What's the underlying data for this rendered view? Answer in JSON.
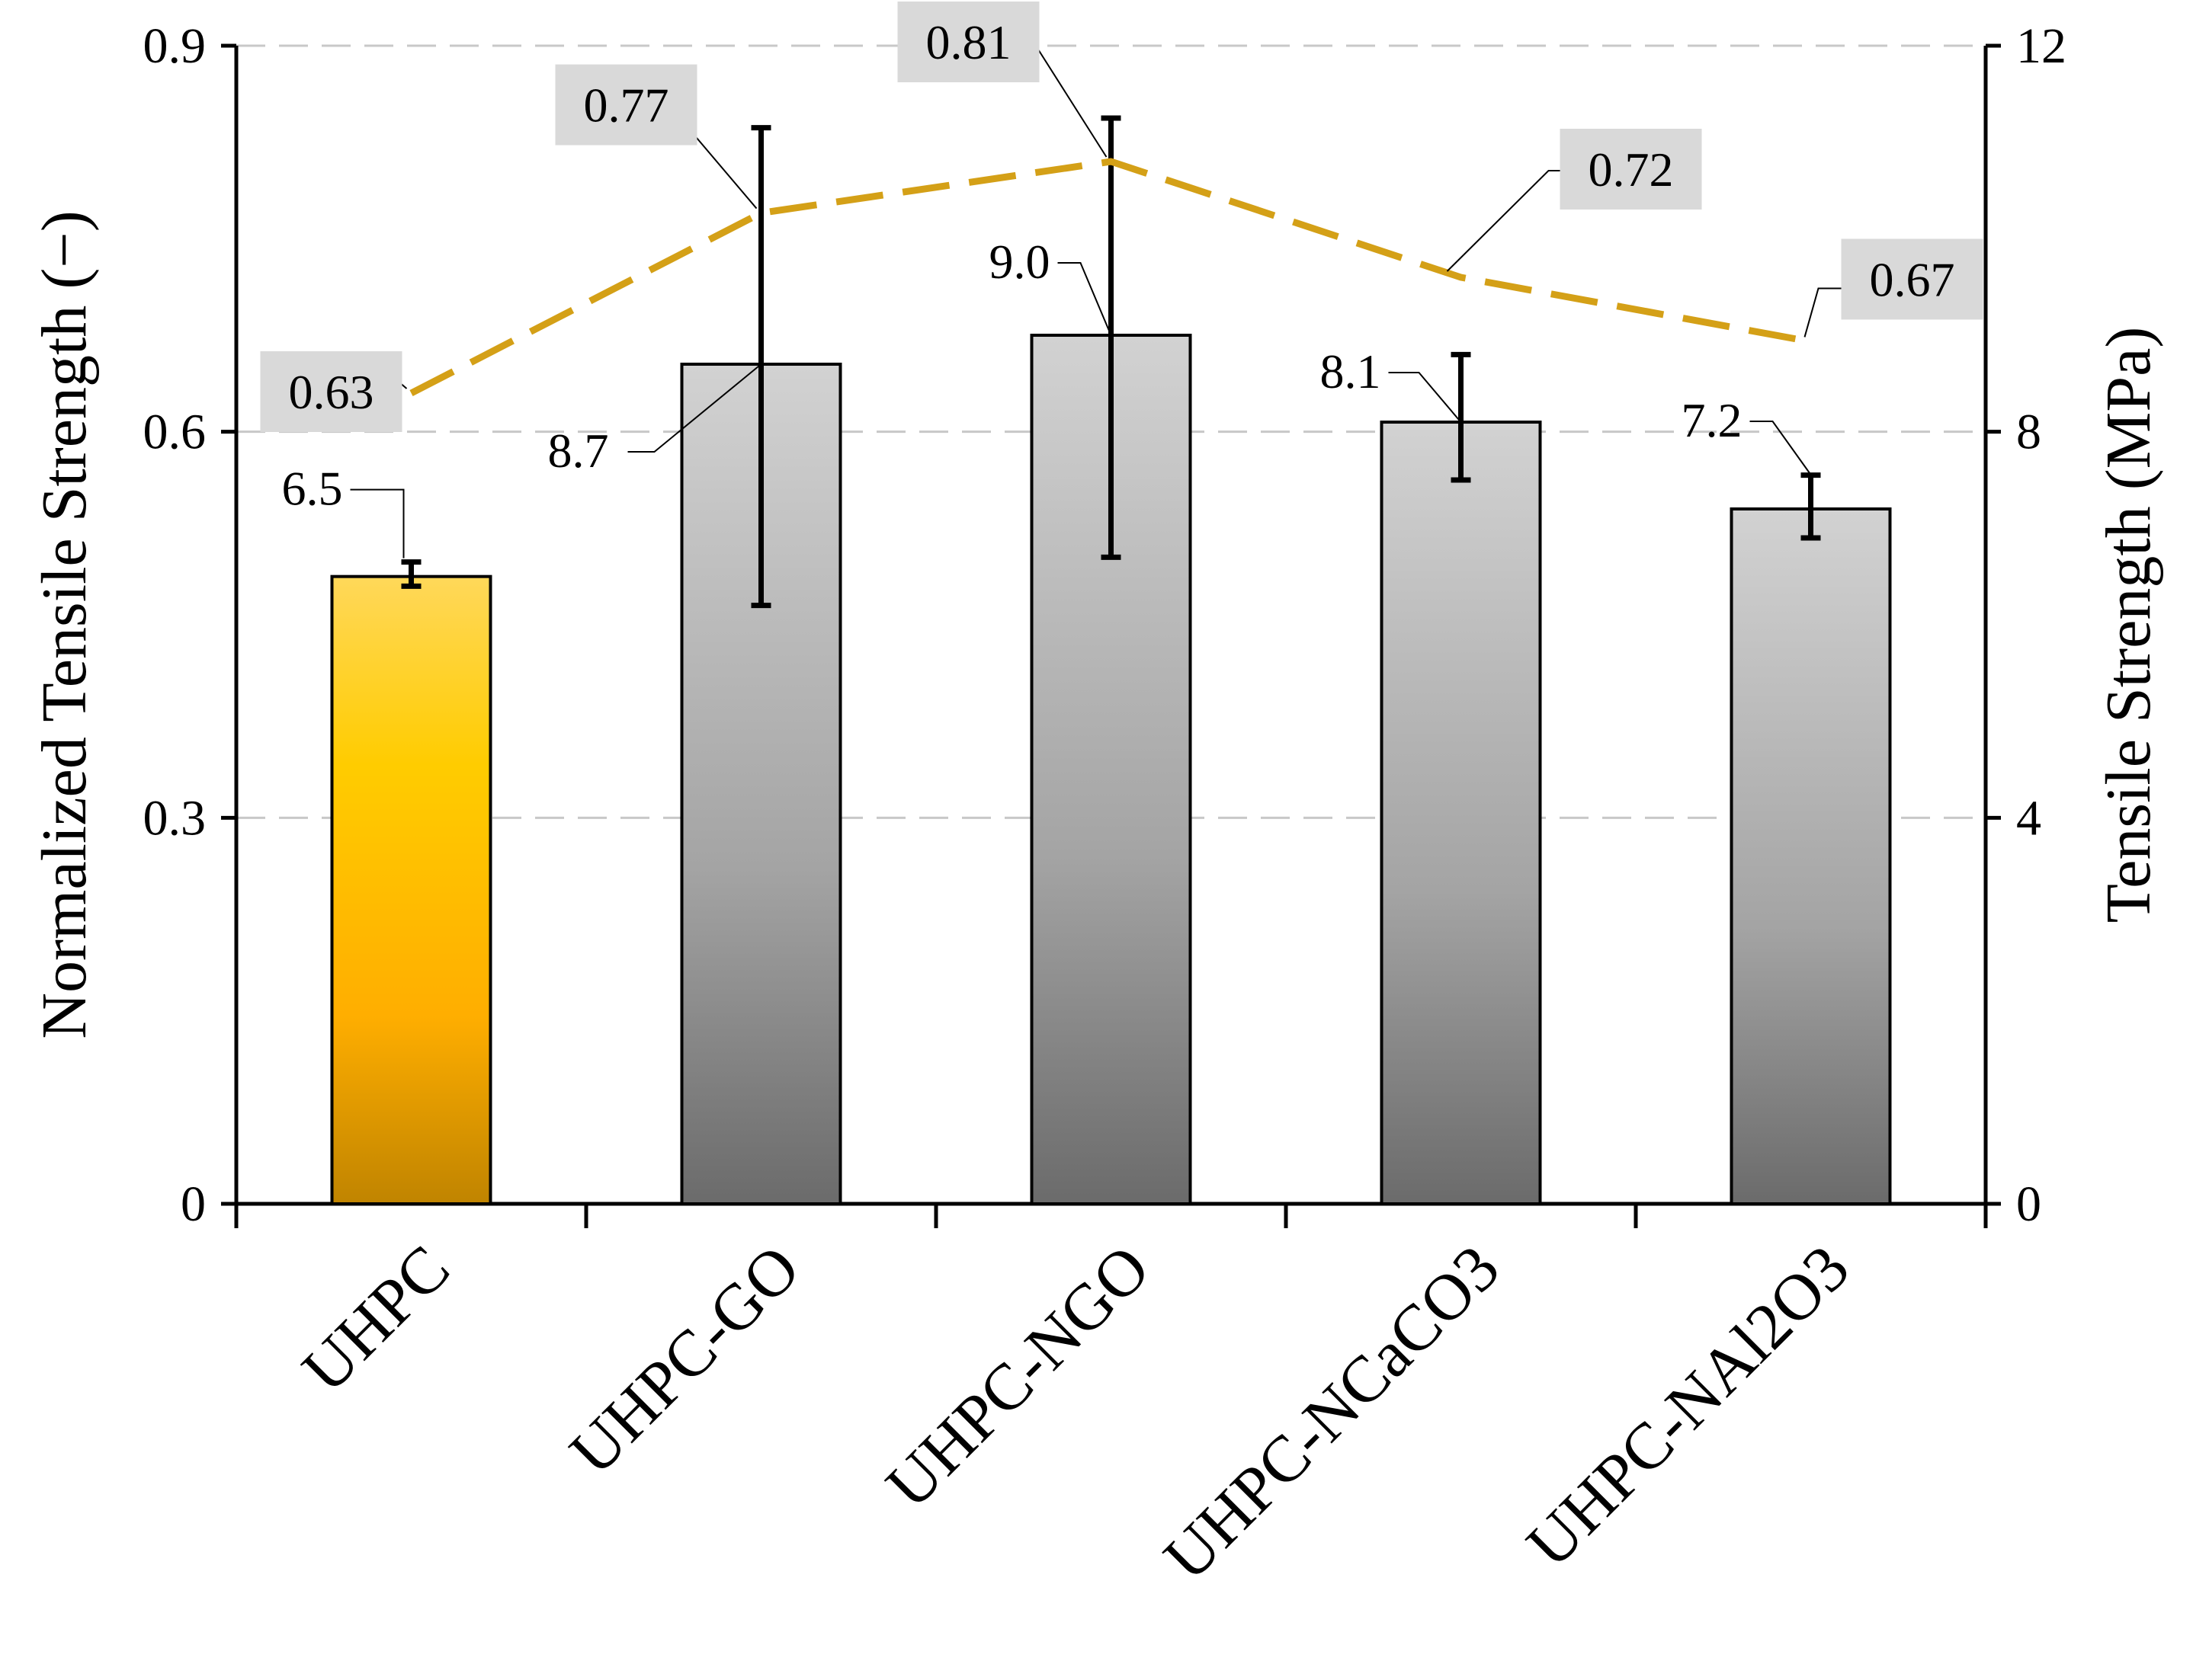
{
  "chart_data": {
    "type": "bar",
    "categories": [
      "UHPC",
      "UHPC-GO",
      "UHPC-NGO",
      "UHPC-NCaCO3",
      "UHPC-NAl2O3"
    ],
    "ylabel_left": "Normalized Tensile Strength (−)",
    "ylabel_right": "Tensile Strength (MPa)",
    "left_axis": {
      "min": 0,
      "max": 0.9,
      "ticks": [
        "0",
        "0.3",
        "0.6",
        "0.9"
      ],
      "tick_values": [
        0,
        0.3,
        0.6,
        0.9
      ]
    },
    "right_axis": {
      "min": 0,
      "max": 12,
      "ticks": [
        "0",
        "4",
        "8",
        "12"
      ],
      "tick_values": [
        0,
        4,
        8,
        12
      ]
    },
    "grid": true,
    "series": [
      {
        "name": "Tensile Strength (MPa)",
        "type": "bar",
        "axis": "right",
        "values": [
          6.5,
          8.7,
          9.0,
          8.1,
          7.2
        ],
        "labels": [
          "6.5",
          "8.7",
          "9.0",
          "8.1",
          "7.2"
        ],
        "error_low": [
          6.4,
          6.2,
          6.7,
          7.5,
          6.9
        ],
        "error_high": [
          6.65,
          11.15,
          11.25,
          8.8,
          7.55
        ],
        "colors": [
          "#ffc000",
          "#9a9a9a",
          "#9a9a9a",
          "#9a9a9a",
          "#9a9a9a"
        ]
      },
      {
        "name": "Normalized Tensile Strength (−)",
        "type": "line",
        "axis": "left",
        "values": [
          0.63,
          0.77,
          0.81,
          0.72,
          0.67
        ],
        "labels": [
          "0.63",
          "0.77",
          "0.81",
          "0.72",
          "0.67"
        ],
        "color": "#d4a017",
        "dash": true
      }
    ]
  }
}
